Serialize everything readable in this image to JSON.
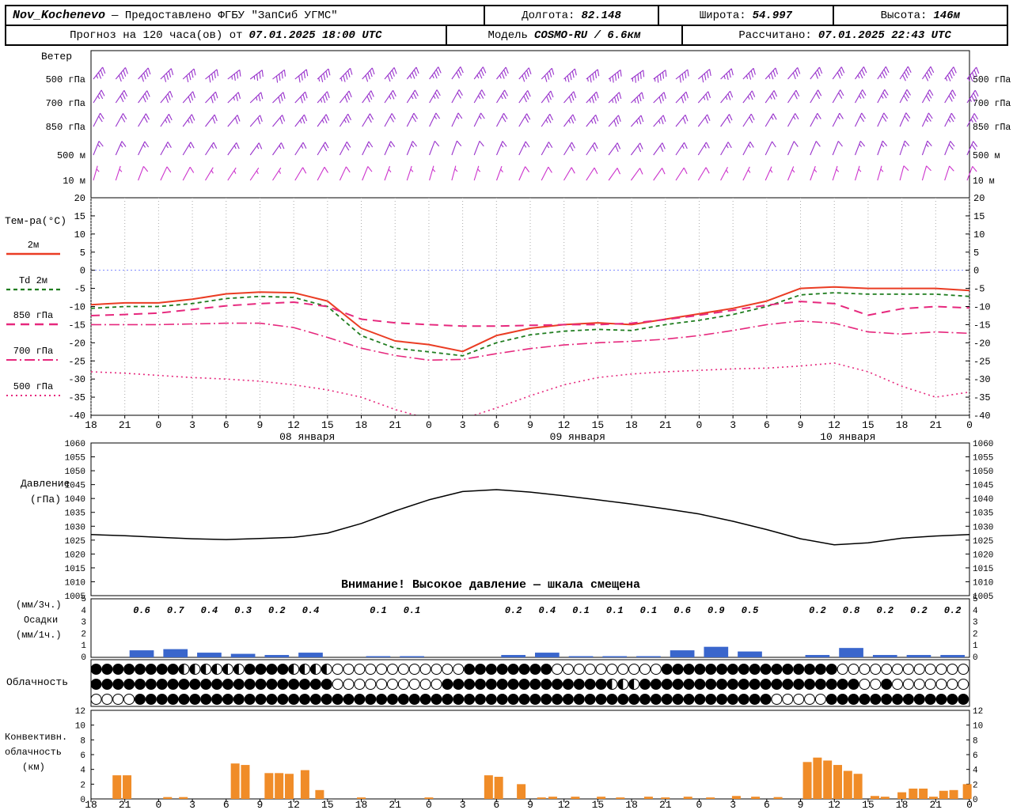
{
  "header": {
    "row1": {
      "station": "Nov_Kochenevo",
      "provider": "— Предоставлено ФГБУ \"ЗапСиб УГМС\"",
      "lon_label": "Долгота:",
      "lon": "82.148",
      "lat_label": "Широта:",
      "lat": "54.997",
      "alt_label": "Высота:",
      "alt": "146м"
    },
    "row2": {
      "forecast_label": "Прогноз на 120 часа(ов) от",
      "forecast_time": "07.01.2025 18:00 UTC",
      "model_label": "Модель",
      "model": "COSMO-RU / 6.6км",
      "calc_label": "Рассчитано:",
      "calc_time": "07.01.2025 22:43 UTC"
    }
  },
  "panels": {
    "wind_title": "Ветер",
    "temp_title": "Тем-ра(°C)",
    "pressure_title_1": "Давление",
    "pressure_title_2": "(гПа)",
    "pressure_warning": "Внимание! Высокое давление — шкала смещена",
    "precip_label_1": "(мм/3ч.)",
    "precip_label_2": "Осадки",
    "precip_label_3": "(мм/1ч.)",
    "cloud_title": "Облачность",
    "conv_label_1": "Конвективн.",
    "conv_label_2": "облачность",
    "conv_label_3": "(км)"
  },
  "chart_data": {
    "type": "meteogram",
    "time": {
      "tick_labels": [
        "18",
        "21",
        "0",
        "3",
        "6",
        "9",
        "12",
        "15",
        "18",
        "21",
        "0",
        "3",
        "6",
        "9",
        "12",
        "15",
        "18",
        "21",
        "0",
        "3",
        "6",
        "9",
        "12",
        "15",
        "18",
        "21",
        "0"
      ],
      "hours_span": 78,
      "date_labels": [
        {
          "label": "08 января",
          "tick": 6.4
        },
        {
          "label": "09 января",
          "tick": 14.4
        },
        {
          "label": "10 января",
          "tick": 22.4
        }
      ]
    },
    "wind": {
      "levels": [
        {
          "label": "500 гПа",
          "y": 100,
          "color": "#9933cc",
          "dirs": [
            38,
            40,
            42,
            45,
            47,
            50,
            52,
            53,
            52,
            50,
            47,
            44,
            42,
            40,
            38,
            36,
            35,
            36,
            38,
            41,
            44,
            47,
            50,
            52,
            54,
            53,
            51,
            49,
            46,
            44,
            42,
            40,
            38,
            36,
            35,
            34,
            33,
            34,
            36,
            38
          ],
          "speeds": [
            35,
            38,
            40,
            42,
            41,
            39,
            37,
            36,
            38,
            41,
            44,
            43,
            41,
            38,
            36,
            34,
            32,
            33,
            35,
            38,
            41,
            43,
            45,
            47,
            45,
            43,
            41,
            39,
            37,
            35,
            34,
            32,
            31,
            32,
            34,
            37,
            39,
            41,
            43,
            44
          ]
        },
        {
          "label": "700 гПа",
          "y": 130,
          "color": "#9933cc",
          "dirs": [
            32,
            34,
            36,
            39,
            41,
            43,
            45,
            46,
            45,
            43,
            41,
            38,
            36,
            34,
            32,
            30,
            29,
            30,
            32,
            35,
            38,
            41,
            43,
            45,
            46,
            45,
            43,
            41,
            39,
            37,
            35,
            33,
            31,
            30,
            29,
            28,
            28,
            29,
            31,
            33
          ],
          "speeds": [
            26,
            28,
            30,
            32,
            31,
            29,
            27,
            26,
            28,
            31,
            33,
            32,
            30,
            27,
            25,
            23,
            22,
            23,
            25,
            28,
            30,
            32,
            34,
            35,
            33,
            31,
            29,
            27,
            26,
            24,
            23,
            22,
            21,
            22,
            24,
            26,
            28,
            30,
            32,
            33
          ]
        },
        {
          "label": "850 гПа",
          "y": 160,
          "color": "#9933cc",
          "dirs": [
            27,
            29,
            31,
            34,
            36,
            38,
            40,
            41,
            40,
            38,
            36,
            33,
            31,
            29,
            27,
            26,
            25,
            26,
            28,
            31,
            34,
            37,
            39,
            41,
            42,
            41,
            39,
            37,
            35,
            33,
            31,
            29,
            28,
            27,
            26,
            25,
            24,
            25,
            27,
            29
          ],
          "speeds": [
            18,
            20,
            22,
            24,
            23,
            21,
            20,
            19,
            21,
            23,
            25,
            24,
            22,
            20,
            18,
            17,
            16,
            17,
            19,
            21,
            23,
            25,
            27,
            28,
            26,
            24,
            22,
            21,
            19,
            18,
            17,
            16,
            15,
            16,
            18,
            20,
            22,
            24,
            25,
            26
          ]
        },
        {
          "label": "500 м",
          "y": 196,
          "color": "#9933cc",
          "dirs": [
            22,
            24,
            26,
            29,
            31,
            33,
            35,
            36,
            35,
            33,
            31,
            28,
            26,
            24,
            22,
            21,
            20,
            21,
            23,
            26,
            29,
            32,
            34,
            36,
            37,
            36,
            34,
            32,
            30,
            28,
            26,
            24,
            23,
            22,
            21,
            20,
            19,
            20,
            22,
            24
          ],
          "speeds": [
            13,
            14,
            16,
            17,
            16,
            15,
            14,
            13,
            15,
            17,
            19,
            18,
            16,
            14,
            13,
            12,
            11,
            12,
            14,
            16,
            17,
            19,
            20,
            21,
            20,
            18,
            17,
            15,
            14,
            13,
            12,
            11,
            10,
            11,
            13,
            14,
            16,
            17,
            19,
            20
          ]
        },
        {
          "label": "10 м",
          "y": 228,
          "color": "#cc33cc",
          "dirs": [
            16,
            18,
            21,
            25,
            28,
            31,
            33,
            34,
            33,
            31,
            28,
            25,
            22,
            20,
            18,
            16,
            15,
            17,
            20,
            24,
            27,
            31,
            33,
            35,
            36,
            35,
            33,
            31,
            28,
            26,
            24,
            22,
            20,
            18,
            17,
            16,
            15,
            16,
            18,
            21
          ],
          "speeds": [
            5,
            6,
            8,
            9,
            8,
            7,
            6,
            5,
            7,
            9,
            10,
            9,
            8,
            7,
            6,
            5,
            4,
            5,
            6,
            8,
            9,
            10,
            11,
            12,
            11,
            10,
            9,
            8,
            7,
            6,
            5,
            5,
            4,
            5,
            6,
            7,
            8,
            9,
            10,
            10
          ]
        }
      ]
    },
    "temperature": {
      "ylim": [
        -40,
        20
      ],
      "ytick_step": 5,
      "series": [
        {
          "name": "2м",
          "color": "#ea3c23",
          "dash": "",
          "width": 2,
          "values": [
            -9.5,
            -9,
            -9,
            -8,
            -6.5,
            -6,
            -6.2,
            -8.5,
            -16,
            -19.5,
            -20.5,
            -22.4,
            -18,
            -16,
            -15,
            -14.5,
            -15,
            -13.5,
            -12,
            -10.5,
            -8.5,
            -5,
            -4.6,
            -5,
            -5,
            -5,
            -5.6
          ]
        },
        {
          "name": "Td 2м",
          "color": "#1f7d1f",
          "dash": "5,4",
          "width": 1.8,
          "values": [
            -10.5,
            -10,
            -10,
            -9.2,
            -7.8,
            -7.2,
            -7.5,
            -10,
            -18,
            -21.5,
            -22.5,
            -23.6,
            -20,
            -17.8,
            -16.8,
            -16.3,
            -16.6,
            -15,
            -13.8,
            -12.2,
            -10,
            -6.8,
            -6.2,
            -6.6,
            -6.6,
            -6.6,
            -7.2
          ]
        },
        {
          "name": "850 гПа",
          "color": "#e6287d",
          "dash": "11,7",
          "width": 2,
          "values": [
            -12.5,
            -12.2,
            -11.8,
            -10.8,
            -9.8,
            -9.2,
            -8.8,
            -10,
            -13.5,
            -14.5,
            -15,
            -15.4,
            -15.4,
            -15.2,
            -15,
            -15,
            -14.6,
            -13.6,
            -12.4,
            -11,
            -9.6,
            -8.6,
            -9.2,
            -12.4,
            -10.6,
            -10,
            -10.4
          ]
        },
        {
          "name": "700 гПа",
          "color": "#e6287d",
          "dash": "13,4,2,4",
          "width": 1.6,
          "values": [
            -15,
            -15,
            -15,
            -14.8,
            -14.6,
            -14.6,
            -15.8,
            -18.5,
            -21.5,
            -23.5,
            -24.8,
            -24.6,
            -23,
            -21.6,
            -20.6,
            -20,
            -19.6,
            -19,
            -18,
            -16.6,
            -15,
            -14,
            -14.6,
            -17,
            -17.6,
            -17,
            -17.4
          ]
        },
        {
          "name": "500 гПа",
          "color": "#e6287d",
          "dash": "2,4",
          "width": 1.6,
          "values": [
            -28,
            -28.4,
            -29,
            -29.6,
            -30,
            -30.6,
            -31.6,
            -33,
            -35,
            -38.4,
            -41,
            -41,
            -38,
            -34.6,
            -31.6,
            -29.6,
            -28.6,
            -28,
            -27.6,
            -27.2,
            -27,
            -26.4,
            -25.6,
            -28,
            -32,
            -35,
            -33.6
          ]
        }
      ]
    },
    "pressure": {
      "ylim": [
        1005,
        1060
      ],
      "ytick_step": 5,
      "color": "#000000",
      "values": [
        1027,
        1026.6,
        1026,
        1025.5,
        1025.2,
        1025.6,
        1026,
        1027.5,
        1031,
        1035.5,
        1039.5,
        1042.5,
        1043.2,
        1042.3,
        1041,
        1039.5,
        1038,
        1036.3,
        1034.4,
        1031.8,
        1028.8,
        1025.5,
        1023.3,
        1024,
        1025.7,
        1026.5,
        1027
      ]
    },
    "precip": {
      "ylim": [
        0,
        5
      ],
      "color": "#3a66cc",
      "interval_values": [
        0,
        0.6,
        0.7,
        0.4,
        0.3,
        0.2,
        0.4,
        0,
        0.1,
        0.1,
        0,
        0,
        0.2,
        0.4,
        0.1,
        0.1,
        0.1,
        0.6,
        0.9,
        0.5,
        0,
        0.2,
        0.8,
        0.2,
        0.2,
        0.2
      ]
    },
    "cloud": {
      "rows": [
        "ffffffffhhhhhhffffhhhhooooooooooooffffffffooooooooooffffffffffffffffoooooooooooo",
        "ffffffffffffffffffffffoooooooooofffffffffffffffhhhffffffffffffffffffffoofooooooo",
        "ooooffffffffffffffffffffffffffffffffffffffffffffffffffffffffffooooofffffffffffff"
      ]
    },
    "convective": {
      "ylim": [
        0,
        12
      ],
      "color": "#f08c28",
      "bars": [
        [
          2.3,
          3.2
        ],
        [
          3.2,
          3.2
        ],
        [
          6.8,
          0.25
        ],
        [
          8.2,
          0.25
        ],
        [
          12.8,
          4.8
        ],
        [
          13.7,
          4.6
        ],
        [
          15.8,
          3.5
        ],
        [
          16.7,
          3.5
        ],
        [
          17.6,
          3.4
        ],
        [
          19,
          3.9
        ],
        [
          20.3,
          1.2
        ],
        [
          24,
          0.2
        ],
        [
          30,
          0.2
        ],
        [
          35.3,
          3.2
        ],
        [
          36.2,
          3.0
        ],
        [
          38.2,
          2.0
        ],
        [
          40,
          0.2
        ],
        [
          41,
          0.3
        ],
        [
          43,
          0.3
        ],
        [
          45.3,
          0.3
        ],
        [
          47,
          0.2
        ],
        [
          49.5,
          0.3
        ],
        [
          51,
          0.2
        ],
        [
          53,
          0.3
        ],
        [
          55,
          0.2
        ],
        [
          57.3,
          0.4
        ],
        [
          59,
          0.3
        ],
        [
          61,
          0.25
        ],
        [
          63.6,
          5.0
        ],
        [
          64.5,
          5.6
        ],
        [
          65.4,
          5.2
        ],
        [
          66.3,
          4.6
        ],
        [
          67.2,
          3.8
        ],
        [
          68.1,
          3.4
        ],
        [
          69.6,
          0.4
        ],
        [
          70.5,
          0.3
        ],
        [
          72,
          0.9
        ],
        [
          73,
          1.4
        ],
        [
          73.9,
          1.4
        ],
        [
          74.8,
          0.3
        ],
        [
          75.7,
          1.1
        ],
        [
          76.6,
          1.2
        ],
        [
          77.8,
          2.0
        ]
      ]
    }
  }
}
